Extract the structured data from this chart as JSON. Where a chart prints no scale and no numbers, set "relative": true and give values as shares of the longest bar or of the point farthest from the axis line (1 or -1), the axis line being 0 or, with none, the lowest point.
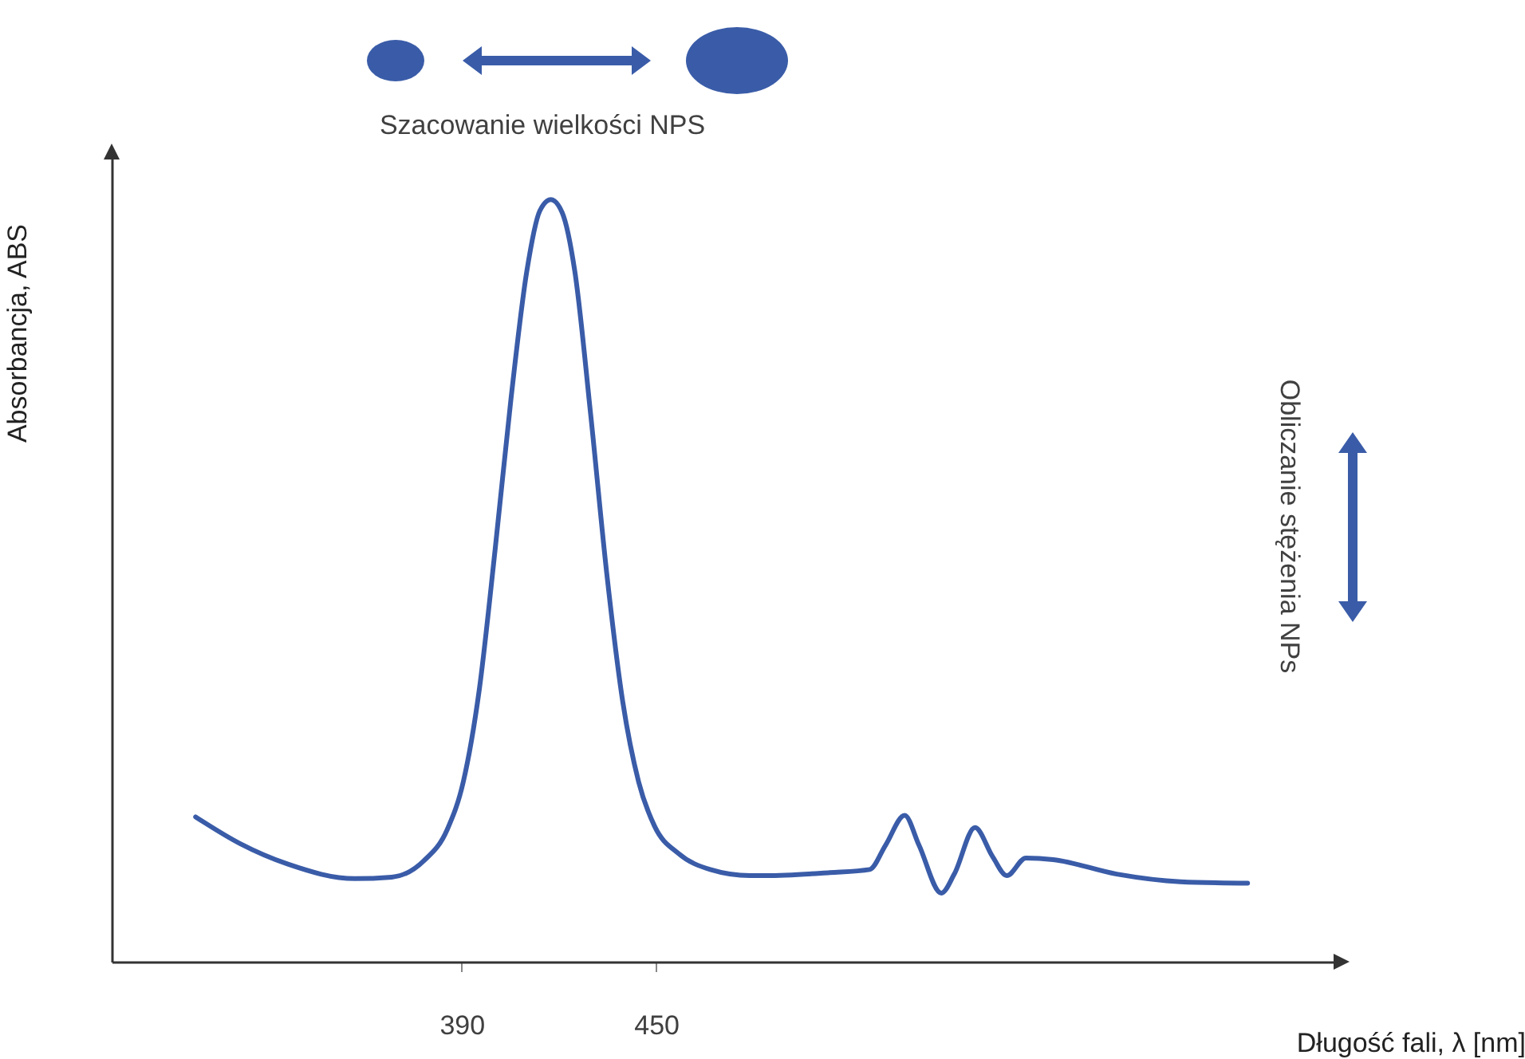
{
  "chart_data": {
    "type": "line",
    "relative": true,
    "xlabel": "Długość fali, λ [nm]",
    "ylabel": "Absorbancja, ABS",
    "annotations": [
      "Szacowanie wielkości NPS",
      "Obliczanie stężenia NPs"
    ],
    "xlim": [
      282,
      661
    ],
    "xticks": [
      390,
      450
    ],
    "grid": false,
    "legend": false,
    "marker": "none",
    "line_style": "solid",
    "x": [
      307.9,
      321.6,
      336.4,
      357.0,
      368.4,
      378.2,
      385.6,
      390.5,
      395.4,
      400.3,
      405.2,
      410.1,
      414.1,
      417.5,
      421.0,
      424.9,
      429.8,
      434.8,
      439.7,
      444.6,
      449.5,
      456.9,
      466.7,
      479.0,
      483.9,
      503.6,
      515.9,
      520.8,
      526.7,
      531.1,
      538.0,
      542.0,
      548.4,
      553.8,
      558.2,
      564.1,
      572.5,
      592.1,
      611.8,
      632.5
    ],
    "series": [
      {
        "color": "#3a5ca8",
        "values": [
          0.19,
          0.155,
          0.128,
          0.109,
          0.111,
          0.132,
          0.174,
          0.236,
          0.356,
          0.54,
          0.738,
          0.906,
          0.985,
          1.0,
          0.983,
          0.906,
          0.718,
          0.508,
          0.341,
          0.236,
          0.178,
          0.142,
          0.121,
          0.113,
          0.113,
          0.117,
          0.121,
          0.153,
          0.192,
          0.153,
          0.09,
          0.115,
          0.176,
          0.138,
          0.113,
          0.136,
          0.134,
          0.115,
          0.105,
          0.103
        ]
      }
    ]
  }
}
